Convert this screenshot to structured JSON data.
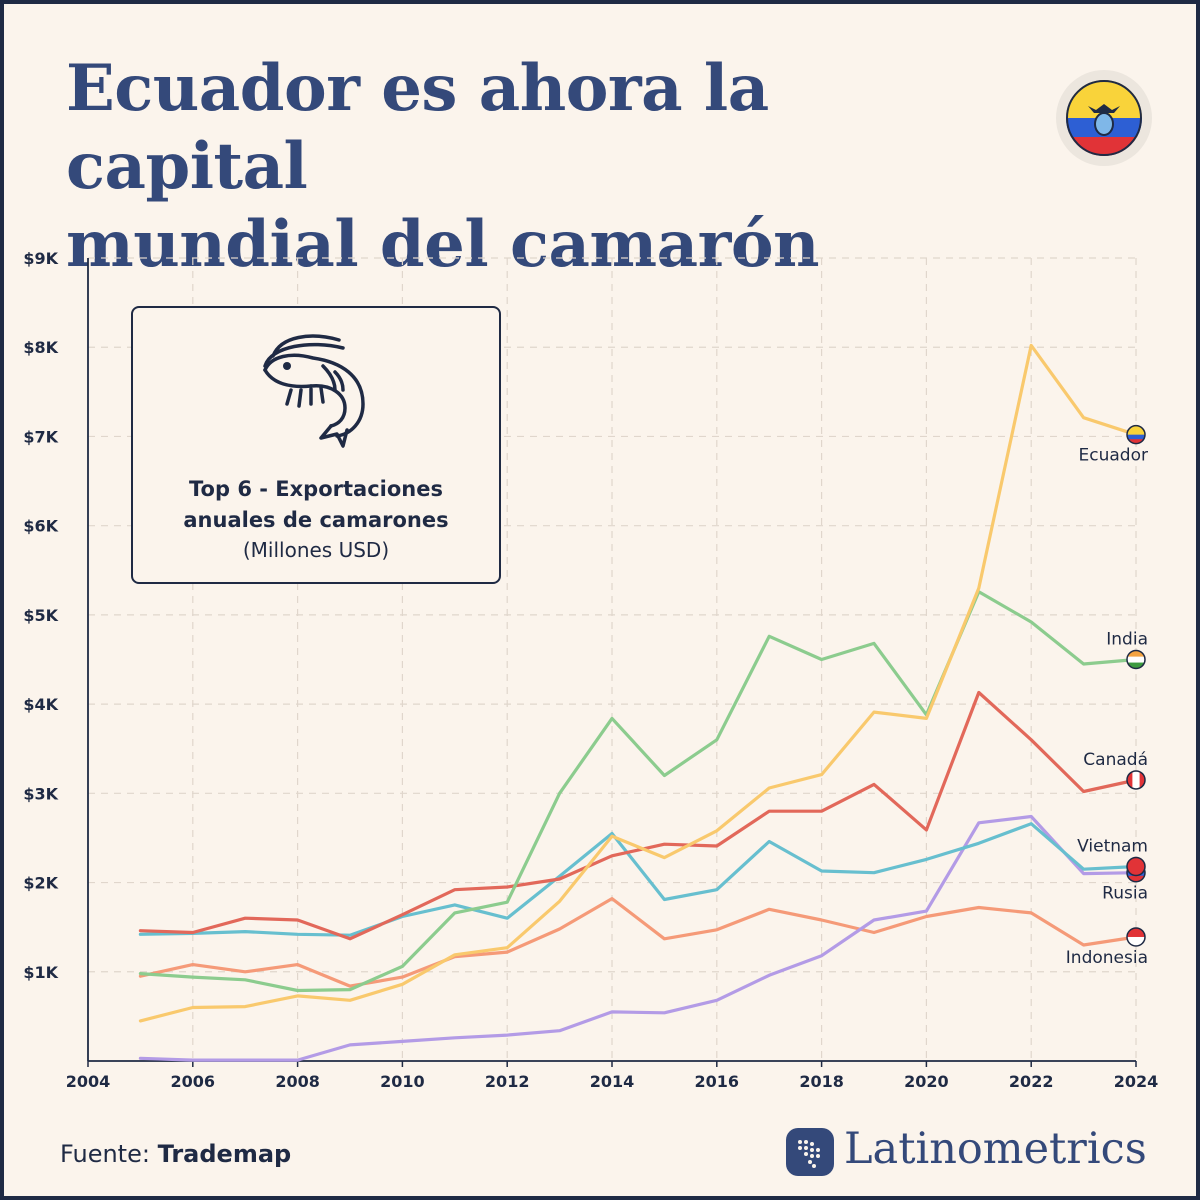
{
  "header": {
    "title_line1": "Ecuador es ahora la capital",
    "title_line2": "mundial del camarón",
    "flag_icon": "ecuador-flag-icon"
  },
  "infobox": {
    "icon": "shrimp-icon",
    "title_line1": "Top 6 - Exportaciones",
    "title_line2": "anuales de camarones",
    "subtitle": "(Millones USD)"
  },
  "footer": {
    "source_label": "Fuente:",
    "source_name": "Trademap",
    "brand": "Latinometrics"
  },
  "colors": {
    "title": "#34497a",
    "text": "#1f2a44",
    "background": "#fbf4ec",
    "grid": "#e0d6cc"
  },
  "chart_data": {
    "type": "line",
    "x": [
      2005,
      2006,
      2007,
      2008,
      2009,
      2010,
      2011,
      2012,
      2013,
      2014,
      2015,
      2016,
      2017,
      2018,
      2019,
      2020,
      2021,
      2022,
      2023,
      2024
    ],
    "xlim": [
      2004,
      2024
    ],
    "ylim": [
      0,
      9000
    ],
    "x_ticks": [
      "2004",
      "2006",
      "2008",
      "2010",
      "2012",
      "2014",
      "2016",
      "2018",
      "2020",
      "2022",
      "2024"
    ],
    "y_ticks": [
      {
        "value": 1000,
        "label": "$1K"
      },
      {
        "value": 2000,
        "label": "$2K"
      },
      {
        "value": 3000,
        "label": "$3K"
      },
      {
        "value": 4000,
        "label": "$4K"
      },
      {
        "value": 5000,
        "label": "$5K"
      },
      {
        "value": 6000,
        "label": "$6K"
      },
      {
        "value": 7000,
        "label": "$7K"
      },
      {
        "value": 8000,
        "label": "$8K"
      },
      {
        "value": 9000,
        "label": "$9K"
      }
    ],
    "grid": true,
    "series": [
      {
        "name": "Indonesia",
        "color": "#f59a78",
        "values": [
          950,
          1080,
          1000,
          1080,
          840,
          940,
          1170,
          1220,
          1480,
          1820,
          1370,
          1470,
          1700,
          1580,
          1440,
          1620,
          1720,
          1660,
          1300,
          1390
        ]
      },
      {
        "name": "Rusia",
        "color": "#b39be6",
        "values": [
          30,
          10,
          10,
          10,
          180,
          220,
          260,
          290,
          340,
          550,
          540,
          680,
          960,
          1180,
          1580,
          1680,
          2670,
          2740,
          2100,
          2110
        ]
      },
      {
        "name": "Vietnam",
        "color": "#67bfcf",
        "values": [
          1420,
          1430,
          1450,
          1420,
          1410,
          1620,
          1750,
          1600,
          2070,
          2550,
          1810,
          1920,
          2460,
          2130,
          2110,
          2260,
          2440,
          2660,
          2150,
          2180
        ]
      },
      {
        "name": "Canadá",
        "color": "#e2685a",
        "values": [
          1460,
          1440,
          1600,
          1580,
          1370,
          1640,
          1920,
          1950,
          2040,
          2300,
          2430,
          2410,
          2800,
          2800,
          3100,
          2590,
          4130,
          3600,
          3020,
          3150
        ]
      },
      {
        "name": "India",
        "color": "#8ccc8e",
        "values": [
          980,
          940,
          910,
          790,
          800,
          1060,
          1660,
          1780,
          3000,
          3840,
          3200,
          3600,
          4760,
          4500,
          4680,
          3880,
          5260,
          4920,
          4450,
          4500
        ]
      },
      {
        "name": "Ecuador",
        "color": "#f9c96d",
        "values": [
          450,
          600,
          610,
          730,
          680,
          860,
          1190,
          1270,
          1790,
          2520,
          2280,
          2580,
          3060,
          3210,
          3910,
          3840,
          5300,
          8020,
          7210,
          7020
        ]
      }
    ]
  }
}
